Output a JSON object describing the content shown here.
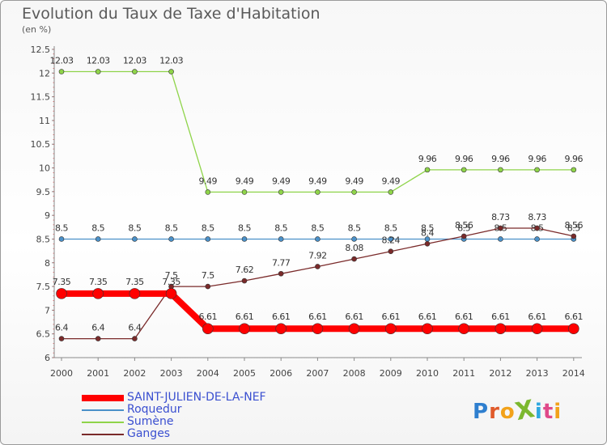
{
  "title": "Evolution du Taux de Taxe d'Habitation",
  "unit_label": "(en %)",
  "logo": {
    "text": "ProXiti",
    "letters": [
      "P",
      "r",
      "o",
      "X",
      "i",
      "t",
      "i"
    ],
    "colors": [
      "#2f7fcf",
      "#e05a2a",
      "#f2a21a",
      "#7cb82f",
      "#2fa8df",
      "#e04a8a",
      "#f2a21a"
    ]
  },
  "chart_data": {
    "type": "line",
    "title": "Evolution du Taux de Taxe d'Habitation",
    "ylabel": "(en %)",
    "xlabel": "",
    "x": [
      "2000",
      "2001",
      "2002",
      "2003",
      "2004",
      "2005",
      "2006",
      "2007",
      "2008",
      "2009",
      "2010",
      "2011",
      "2012",
      "2013",
      "2014"
    ],
    "ylim": [
      6,
      12.5
    ],
    "yticks": [
      "6",
      "6.5",
      "7",
      "7.5",
      "8",
      "8.5",
      "9",
      "9.5",
      "10",
      "10.5",
      "11",
      "11.5",
      "12",
      "12.5"
    ],
    "grid": false,
    "legend_position": "bottom-left",
    "series": [
      {
        "name": "SAINT-JULIEN-DE-LA-NEF",
        "color": "#ff0000",
        "values": [
          7.35,
          7.35,
          7.35,
          7.35,
          6.61,
          6.61,
          6.61,
          6.61,
          6.61,
          6.61,
          6.61,
          6.61,
          6.61,
          6.61,
          6.61
        ],
        "labels": [
          "7.35",
          "7.35",
          "7.35",
          "7.35",
          "6.61",
          "6.61",
          "6.61",
          "6.61",
          "6.61",
          "6.61",
          "6.61",
          "6.61",
          "6.61",
          "6.61",
          "6.61"
        ]
      },
      {
        "name": "Roquedur",
        "color": "#4a90c8",
        "values": [
          8.5,
          8.5,
          8.5,
          8.5,
          8.5,
          8.5,
          8.5,
          8.5,
          8.5,
          8.5,
          8.5,
          8.5,
          8.5,
          8.5,
          8.5
        ],
        "labels": [
          "8.5",
          "8.5",
          "8.5",
          "8.5",
          "8.5",
          "8.5",
          "8.5",
          "8.5",
          "8.5",
          "8.5",
          "8.5",
          "8.5",
          "8.5",
          "8.5",
          "8.5"
        ]
      },
      {
        "name": "Sumène",
        "color": "#8fd44a",
        "values": [
          12.03,
          12.03,
          12.03,
          12.03,
          9.49,
          9.49,
          9.49,
          9.49,
          9.49,
          9.49,
          9.96,
          9.96,
          9.96,
          9.96,
          9.96
        ],
        "labels": [
          "12.03",
          "12.03",
          "12.03",
          "12.03",
          "9.49",
          "9.49",
          "9.49",
          "9.49",
          "9.49",
          "9.49",
          "9.96",
          "9.96",
          "9.96",
          "9.96",
          "9.96"
        ]
      },
      {
        "name": "Ganges",
        "color": "#7a2a2a",
        "values": [
          6.4,
          6.4,
          6.4,
          7.5,
          7.5,
          7.62,
          7.77,
          7.92,
          8.08,
          8.24,
          8.4,
          8.56,
          8.73,
          8.73,
          8.56
        ],
        "labels": [
          "6.4",
          "6.4",
          "6.4",
          "7.5",
          "7.5",
          "7.62",
          "7.77",
          "7.92",
          "8.08",
          "8.24",
          "8.4",
          "8.56",
          "8.73",
          "8.73",
          "8.56"
        ]
      }
    ]
  }
}
